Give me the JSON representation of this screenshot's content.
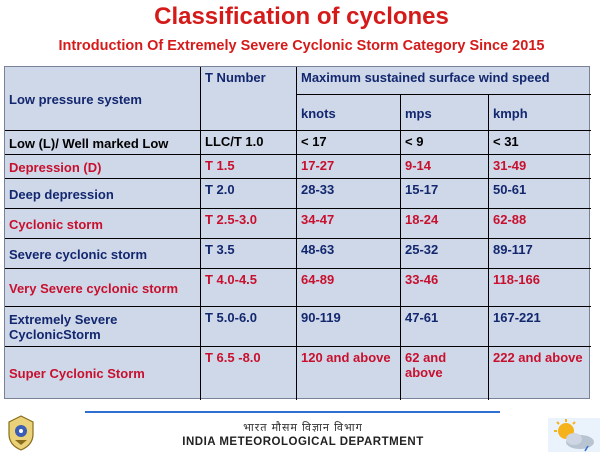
{
  "title": "Classification of cyclones",
  "subtitle": "Introduction Of Extremely Severe Cyclonic Storm Category Since 2015",
  "table": {
    "h_system": "Low pressure system",
    "h_tnumber": "T Number",
    "h_wind": "Maximum sustained surface wind speed",
    "h_knots": "knots",
    "h_mps": "mps",
    "h_kmph": "kmph",
    "rows": [
      {
        "system": "Low (L)/ Well marked Low",
        "t": "LLC/T 1.0",
        "knots": "< 17",
        "mps": "<  9",
        "kmph": "< 31"
      },
      {
        "system": "Depression (D)",
        "t": "T 1.5",
        "knots": "17-27",
        "mps": "9-14",
        "kmph": "31-49"
      },
      {
        "system": "Deep depression",
        "t": "T 2.0",
        "knots": "28-33",
        "mps": "15-17",
        "kmph": "50-61"
      },
      {
        "system": "Cyclonic storm",
        "t": "T 2.5-3.0",
        "knots": "34-47",
        "mps": "18-24",
        "kmph": "62-88"
      },
      {
        "system": "Severe cyclonic storm",
        "t": "T 3.5",
        "knots": "48-63",
        "mps": "25-32",
        "kmph": "89-117"
      },
      {
        "system": "Very Severe cyclonic storm",
        "t": "T 4.0-4.5",
        "knots": "64-89",
        "mps": "33-46",
        "kmph": "118-166"
      },
      {
        "system": "Extremely Severe CyclonicStorm",
        "t": "T 5.0-6.0",
        "knots": "90-119",
        "mps": "47-61",
        "kmph": "167-221"
      },
      {
        "system": "Super Cyclonic Storm",
        "t": "T 6.5 -8.0",
        "knots": "120 and above",
        "mps": "62 and above",
        "kmph": "222 and above"
      }
    ]
  },
  "footer": {
    "hindi": "भारत मौसम विज्ञान विभाग",
    "department": "INDIA METEOROLOGICAL DEPARTMENT"
  },
  "icons": [
    "imd-emblem-icon",
    "sun-cloud-icon"
  ],
  "colors": {
    "title": "#d51a1a",
    "red_row": "#c8102e",
    "blue_row": "#13276e",
    "table_bg": "#cfd8e9",
    "footer_line": "#2f6fd0"
  }
}
